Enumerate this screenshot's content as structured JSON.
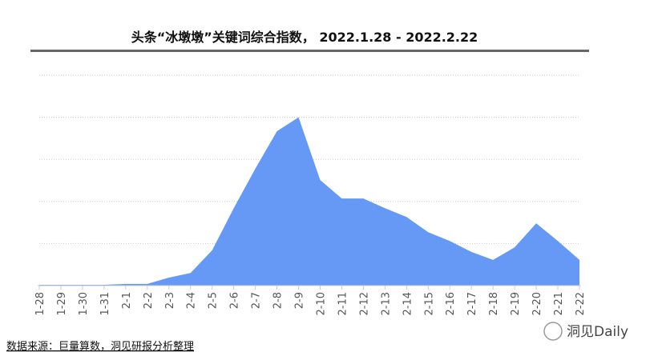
{
  "chart_data": {
    "type": "area",
    "title": "头条“冰墩墩”关键词综合指数， 2022.1.28 - 2022.2.22",
    "categories": [
      "1-28",
      "1-29",
      "1-30",
      "1-31",
      "2-1",
      "2-2",
      "2-3",
      "2-4",
      "2-5",
      "2-6",
      "2-7",
      "2-8",
      "2-9",
      "2-10",
      "2-11",
      "2-12",
      "2-13",
      "2-14",
      "2-15",
      "2-16",
      "2-17",
      "2-18",
      "2-19",
      "2-20",
      "2-21",
      "2-22"
    ],
    "values": [
      0.02,
      0.02,
      0.02,
      0.02,
      0.04,
      0.04,
      0.19,
      0.3,
      0.84,
      1.84,
      2.78,
      3.67,
      4.0,
      2.51,
      2.07,
      2.07,
      1.84,
      1.63,
      1.27,
      1.06,
      0.8,
      0.61,
      0.91,
      1.48,
      1.06,
      0.61
    ],
    "color": "#6699f5",
    "ylim": [
      0,
      5
    ],
    "yticks": [
      1,
      2,
      3,
      4,
      5
    ],
    "grid": true,
    "source": "数据来源：巨量算数，洞见研报分析整理",
    "watermark": "洞见Daily"
  }
}
